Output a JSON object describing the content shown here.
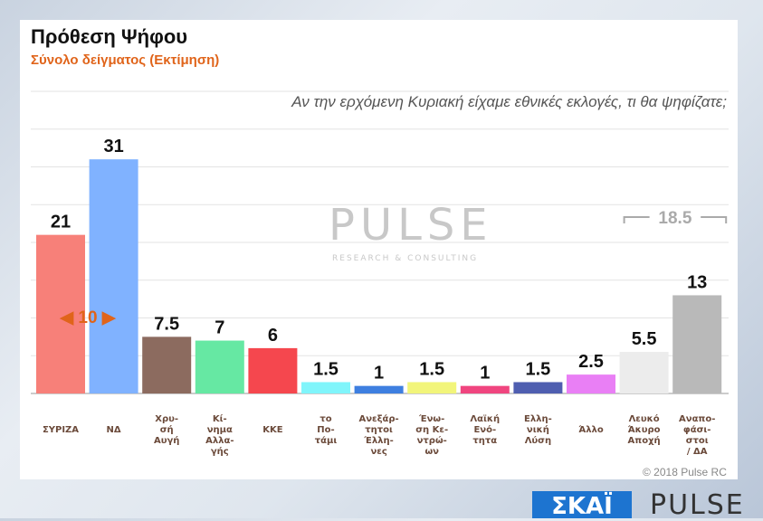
{
  "header": {
    "title": "Πρόθεση Ψήφου",
    "subtitle": "Σύνολο δείγματος   (Εκτίμηση)",
    "question": "Αν την ερχόμενη Κυριακή είχαμε εθνικές εκλογές, τι θα ψηφίζατε;"
  },
  "footer": {
    "copyright": "© 2018 Pulse RC",
    "logo_skai": "ΣΚΑΪ",
    "logo_pulse": "PULSE"
  },
  "watermark": {
    "name": "PULSE",
    "tagline": "RESEARCH & CONSULTING"
  },
  "chart_data": {
    "type": "bar",
    "categories": [
      "ΣΥΡΙΖΑ",
      "ΝΔ",
      "Χρυ-|σή|Αυγή",
      "Κί-|νημα|Αλλα-|γής",
      "ΚΚΕ",
      "το|Πο-|τάμι",
      "Ανεξάρ-|τητοι|Έλλη-|νες",
      "Ένω-|ση Κε-|ντρώ-|ων",
      "Λαϊκή|Ενό-|τητα",
      "Ελλη-|νική|Λύση",
      "Άλλο",
      "Λευκό|Άκυρο|Αποχή",
      "Αναπο-|φάσι-|στοι|/ ΔΑ"
    ],
    "values": [
      21,
      31,
      7.5,
      7,
      6,
      1.5,
      1,
      1.5,
      1,
      1.5,
      2.5,
      5.5,
      13
    ],
    "colors": [
      "#f78079",
      "#80b2ff",
      "#8c6b5f",
      "#66e8a3",
      "#f5474e",
      "#80f5fb",
      "#3e7fe0",
      "#f2f57a",
      "#f0457f",
      "#4f5eb0",
      "#e97ff5",
      "#ececec",
      "#b9b9b9"
    ],
    "ylim": [
      0,
      40
    ],
    "grid": true,
    "annotations": [
      {
        "text": "◀ 10 ▶",
        "color": "#e0641a",
        "note_between": [
          "ΣΥΡΙΖΑ",
          "ΝΔ"
        ]
      },
      {
        "text": "18.5",
        "color": "#aaaaaa",
        "spans": [
          "Λευκό Άκυρο Αποχή",
          "Αναποφάσιστοι / ΔΑ"
        ]
      }
    ]
  }
}
